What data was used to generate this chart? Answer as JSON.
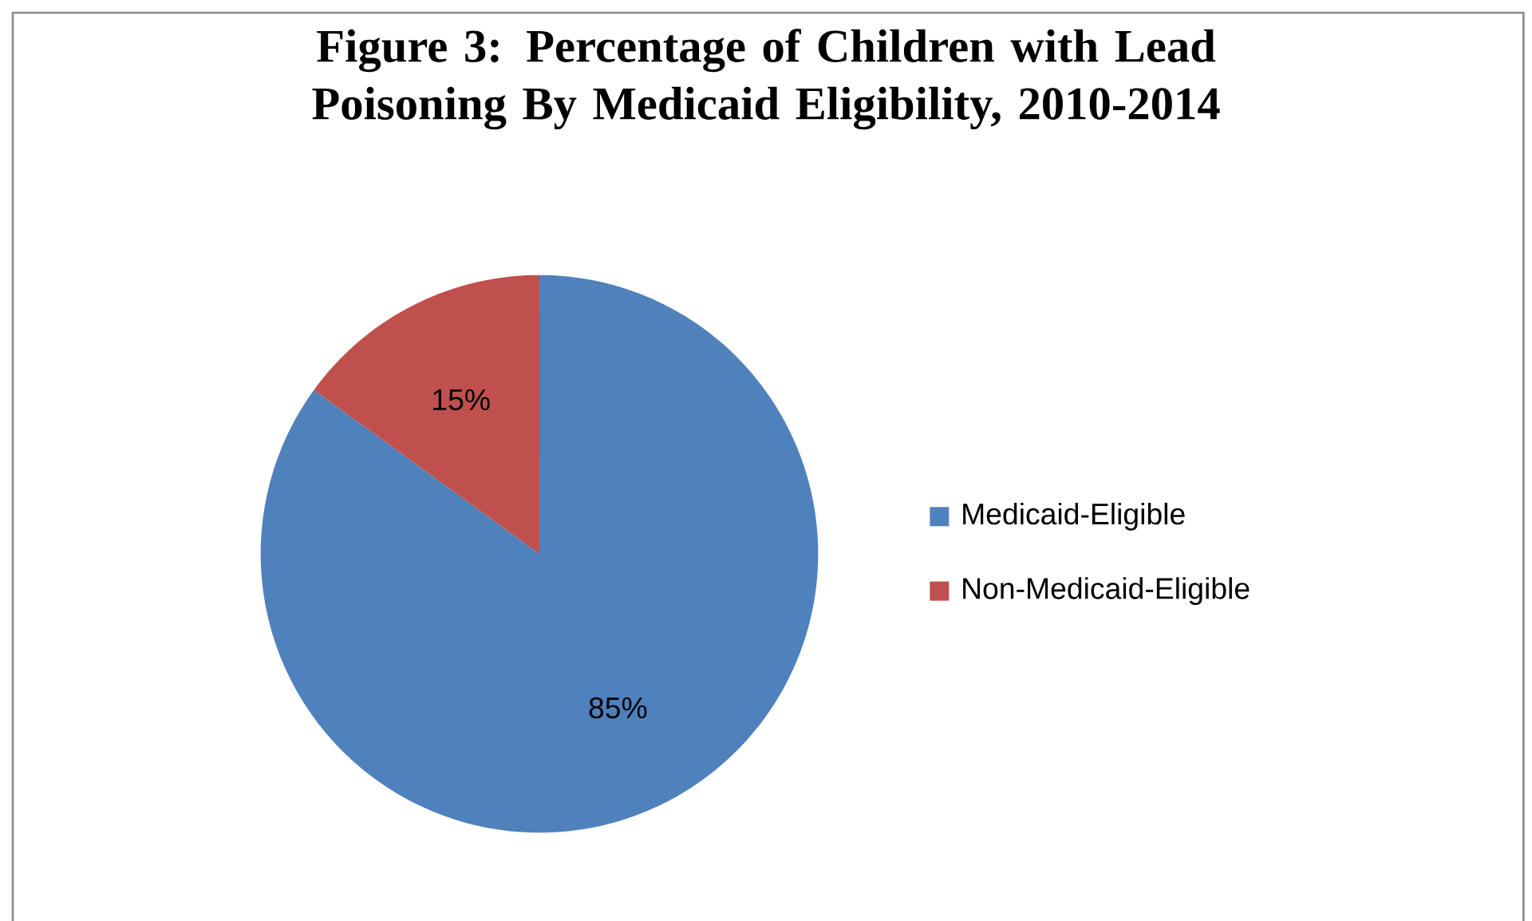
{
  "chart_data": {
    "type": "pie",
    "title": "Figure 3: Percentage of Children with Lead Poisoning By Medicaid Eligibility, 2010-2014",
    "categories": [
      "Medicaid-Eligible",
      "Non-Medicaid-Eligible"
    ],
    "values": [
      85,
      15
    ],
    "colors": [
      "#4f81bd",
      "#c0504d"
    ],
    "value_labels": [
      "85%",
      "15%"
    ],
    "legend": "right"
  }
}
